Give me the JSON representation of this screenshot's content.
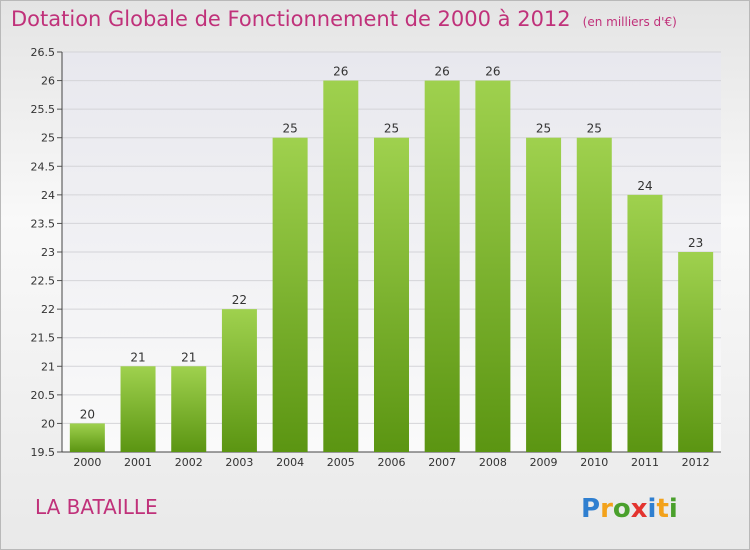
{
  "header": {
    "title": "Dotation Globale de Fonctionnement de 2000 à 2012",
    "unit": "(en milliers d'€)"
  },
  "footer": {
    "commune": "LA BATAILLE",
    "brand": "Proxiti"
  },
  "colors": {
    "title": "#c0317a",
    "bar_top": "#9fd14e",
    "bar_bottom": "#5b9512",
    "logo": [
      "#2f7fd0",
      "#f3a21b",
      "#4aa02c",
      "#e3342f"
    ]
  },
  "chart_data": {
    "type": "bar",
    "categories": [
      "2000",
      "2001",
      "2002",
      "2003",
      "2004",
      "2005",
      "2006",
      "2007",
      "2008",
      "2009",
      "2010",
      "2011",
      "2012"
    ],
    "values": [
      20,
      21,
      21,
      22,
      25,
      26,
      25,
      26,
      26,
      25,
      25,
      24,
      23
    ],
    "data_labels": [
      "20",
      "21",
      "21",
      "22",
      "25",
      "26",
      "25",
      "26",
      "26",
      "25",
      "25",
      "24",
      "23"
    ],
    "ylim": [
      19.5,
      26.5
    ],
    "yticks": [
      "19.5",
      "20",
      "20.5",
      "21",
      "21.5",
      "22",
      "22.5",
      "23",
      "23.5",
      "24",
      "24.5",
      "25",
      "25.5",
      "26",
      "26.5"
    ],
    "grid": true
  }
}
